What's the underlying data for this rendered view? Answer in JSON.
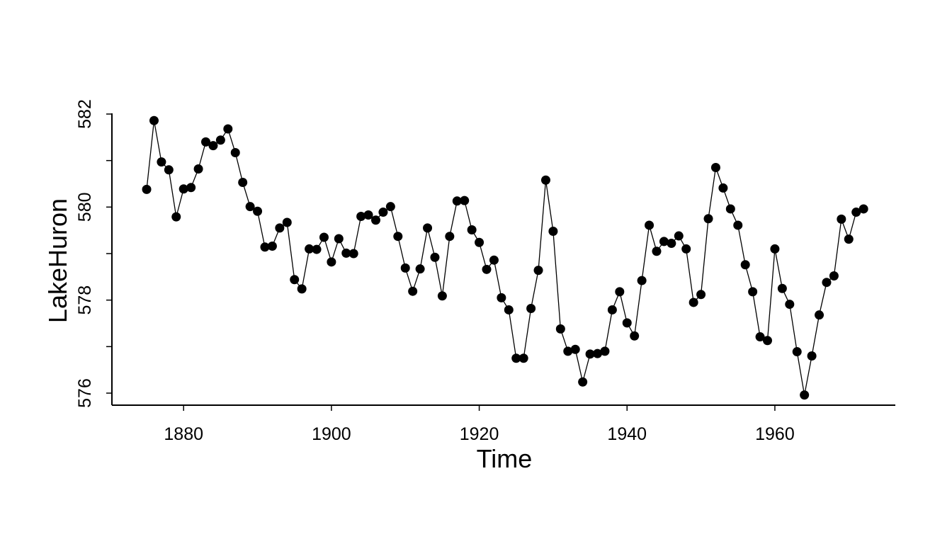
{
  "chart_data": {
    "type": "line",
    "xlabel": "Time",
    "ylabel": "LakeHuron",
    "xlim": [
      1870.3,
      1976.3
    ],
    "ylim": [
      575.5,
      582
    ],
    "x_ticks": [
      1880,
      1900,
      1920,
      1940,
      1960
    ],
    "x_tick_labels": [
      "1880",
      "1900",
      "1920",
      "1940",
      "1960"
    ],
    "y_ticks": [
      576,
      577,
      578,
      579,
      580,
      581,
      582
    ],
    "y_tick_labels": [
      "576",
      "",
      "578",
      "",
      "580",
      "",
      "582"
    ],
    "grid": false,
    "markers": "filled-circle",
    "colors": {
      "line": "#000000",
      "marker": "#000000"
    },
    "series": [
      {
        "x": [
          1875,
          1876,
          1877,
          1878,
          1879,
          1880,
          1881,
          1882,
          1883,
          1884,
          1885,
          1886,
          1887,
          1888,
          1889,
          1890,
          1891,
          1892,
          1893,
          1894,
          1895,
          1896,
          1897,
          1898,
          1899,
          1900,
          1901,
          1902,
          1903,
          1904,
          1905,
          1906,
          1907,
          1908,
          1909,
          1910,
          1911,
          1912,
          1913,
          1914,
          1915,
          1916,
          1917,
          1918,
          1919,
          1920,
          1921,
          1922,
          1923,
          1924,
          1925,
          1926,
          1927,
          1928,
          1929,
          1930,
          1931,
          1932,
          1933,
          1934,
          1935,
          1936,
          1937,
          1938,
          1939,
          1940,
          1941,
          1942,
          1943,
          1944,
          1945,
          1946,
          1947,
          1948,
          1949,
          1950,
          1951,
          1952,
          1953,
          1954,
          1955,
          1956,
          1957,
          1958,
          1959,
          1960,
          1961,
          1962,
          1963,
          1964,
          1965,
          1966,
          1967,
          1968,
          1969,
          1970,
          1971,
          1972
        ],
        "values": [
          580.38,
          581.86,
          580.97,
          580.8,
          579.79,
          580.39,
          580.42,
          580.82,
          581.4,
          581.32,
          581.44,
          581.68,
          581.17,
          580.53,
          580.01,
          579.91,
          579.14,
          579.16,
          579.55,
          579.67,
          578.44,
          578.24,
          579.1,
          579.09,
          579.35,
          578.82,
          579.32,
          579.01,
          579.0,
          579.8,
          579.83,
          579.72,
          579.89,
          580.01,
          579.37,
          578.69,
          578.19,
          578.67,
          579.55,
          578.92,
          578.09,
          579.37,
          580.13,
          580.14,
          579.51,
          579.24,
          578.66,
          578.86,
          578.05,
          577.79,
          576.75,
          576.75,
          577.82,
          578.64,
          580.58,
          579.48,
          577.38,
          576.9,
          576.94,
          576.24,
          576.84,
          576.85,
          576.9,
          577.79,
          578.18,
          577.51,
          577.23,
          578.42,
          579.61,
          579.05,
          579.26,
          579.22,
          579.38,
          579.1,
          577.95,
          578.12,
          579.75,
          580.85,
          580.41,
          579.96,
          579.61,
          578.76,
          578.18,
          577.21,
          577.13,
          579.1,
          578.25,
          577.91,
          576.89,
          575.96,
          576.8,
          577.68,
          578.38,
          578.52,
          579.74,
          579.31,
          579.89,
          579.96
        ]
      }
    ]
  }
}
